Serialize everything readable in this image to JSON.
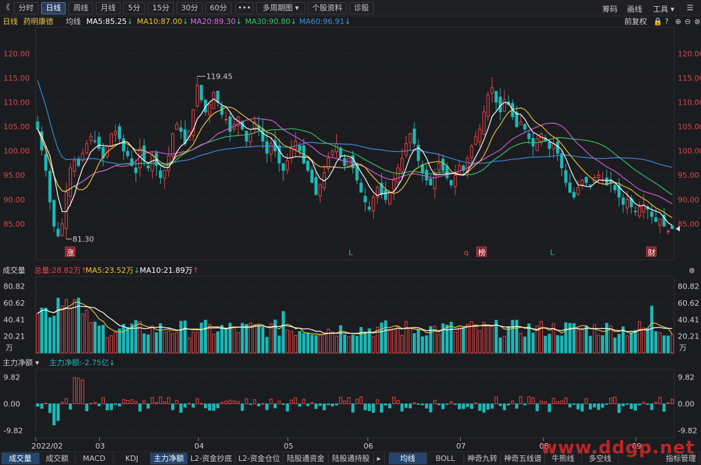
{
  "toolbar": {
    "collapse": "《",
    "periods": [
      "分时",
      "日线",
      "周线",
      "月线",
      "5分",
      "15分",
      "30分",
      "60分"
    ],
    "active_period": "日线",
    "more": "•••",
    "multi_period": "多周期图",
    "stock_info": "个股资料",
    "diagnose": "诊股",
    "chips": "筹码",
    "draw": "画线",
    "tools": "工具"
  },
  "info": {
    "period": "日线",
    "name": "药明康德",
    "ma_label": "均线",
    "ma5": "MA5:85.25",
    "ma10": "MA10:87.00",
    "ma20": "MA20:89.30",
    "ma30": "MA30:90.80",
    "ma60": "MA60:96.91",
    "adjust": "前复权"
  },
  "volume_panel": {
    "title": "成交量",
    "total": "总量:28.82万",
    "ma5": "MA5:23.52万",
    "ma10": "MA10:21.89万",
    "unit": "万"
  },
  "flow_panel": {
    "title": "主力净额",
    "value": "主力净额:-2.75亿"
  },
  "bottom_tabs": [
    "成交量",
    "成交额",
    "MACD",
    "KDJ",
    "主力净额",
    "L2-资金抄底",
    "L2-资金仓位",
    "陆股通资金",
    "陆股通持股"
  ],
  "bottom_tabs_right": [
    "均线",
    "BOLL",
    "神奇九转",
    "神奇五线谱",
    "牛熊线",
    "多空线",
    "指标管理"
  ],
  "watermark": "www.ddgp.net",
  "colors": {
    "up": "#e64545",
    "down": "#1fb7b7",
    "ma5": "#ffffff",
    "ma10": "#e8c53a",
    "ma20": "#d65ad6",
    "ma30": "#35c46a",
    "ma60": "#3a8fe0",
    "bg": "#1b1c20"
  },
  "chart_data": [
    {
      "type": "candlestick",
      "y_ticks": [
        85.0,
        90.0,
        95.0,
        100.0,
        105.0,
        110.0,
        115.0,
        120.0
      ],
      "ylim": [
        79.0,
        124.0
      ],
      "x_labels": [
        "2022/02",
        "03",
        "04",
        "05",
        "06",
        "07",
        "08",
        "09"
      ],
      "high_label": "119.45",
      "low_label": "81.30",
      "markers": [
        {
          "text": "涨",
          "style": "box"
        },
        {
          "text": "L",
          "style": "plain"
        },
        {
          "text": "q",
          "style": "plain"
        },
        {
          "text": "榜",
          "style": "box"
        },
        {
          "text": "L",
          "style": "plain"
        },
        {
          "text": "财",
          "style": "box"
        }
      ],
      "closes": [
        104.5,
        100.2,
        96.0,
        89.5,
        84.5,
        82.5,
        85.0,
        91.5,
        96.5,
        98.0,
        97.0,
        99.5,
        101.5,
        103.0,
        102.0,
        100.5,
        98.5,
        101.0,
        103.5,
        104.0,
        102.5,
        100.0,
        99.0,
        97.0,
        95.5,
        100.5,
        98.0,
        96.5,
        99.0,
        97.0,
        94.5,
        96.0,
        99.0,
        103.5,
        105.5,
        104.0,
        101.5,
        104.0,
        108.5,
        113.5,
        110.5,
        108.0,
        109.5,
        112.0,
        110.0,
        107.5,
        106.5,
        104.0,
        105.5,
        107.0,
        104.5,
        102.0,
        103.5,
        106.0,
        104.5,
        102.0,
        99.5,
        101.5,
        100.0,
        97.5,
        96.0,
        98.0,
        100.5,
        102.0,
        100.0,
        97.5,
        96.0,
        93.5,
        91.0,
        93.0,
        95.5,
        98.5,
        100.0,
        101.5,
        99.0,
        97.0,
        98.5,
        96.5,
        94.0,
        91.5,
        89.5,
        88.0,
        90.5,
        92.5,
        91.0,
        90.0,
        91.5,
        94.0,
        96.5,
        98.5,
        101.5,
        103.5,
        101.5,
        98.0,
        95.5,
        94.0,
        93.0,
        95.5,
        97.5,
        96.0,
        94.5,
        93.0,
        95.0,
        97.0,
        96.0,
        98.5,
        101.0,
        103.0,
        104.5,
        108.0,
        111.5,
        113.0,
        110.0,
        108.0,
        110.5,
        109.5,
        107.0,
        105.0,
        106.0,
        104.5,
        102.5,
        101.0,
        102.5,
        103.5,
        102.0,
        100.5,
        101.5,
        99.5,
        96.5,
        93.5,
        91.5,
        90.5,
        92.5,
        94.0,
        93.5,
        93.0,
        94.5,
        95.0,
        94.0,
        93.0,
        93.5,
        92.0,
        90.5,
        89.0,
        90.0,
        88.5,
        87.5,
        88.5,
        89.0,
        88.0,
        86.5,
        85.5,
        86.0,
        84.5,
        83.5,
        84.0
      ],
      "ma5": [
        104.5,
        103.0,
        101.0,
        99.0,
        95.0,
        90.5,
        87.5,
        87.5,
        89.0,
        91.0,
        94.0,
        96.5,
        98.0,
        99.8,
        100.6,
        101.2,
        101.1,
        101.0,
        101.0,
        101.3,
        101.5,
        101.9,
        101.8,
        100.8,
        99.6,
        98.8,
        98.0,
        97.5,
        97.9,
        98.2,
        97.0,
        96.6,
        96.6,
        97.9,
        99.8,
        101.0,
        101.6,
        102.9,
        104.3,
        106.6,
        107.6,
        109.1,
        110.0,
        110.7,
        110.1,
        109.4,
        109.1,
        108.0,
        106.7,
        106.1,
        105.5,
        104.7,
        104.4,
        104.6,
        104.5,
        103.6,
        103.1,
        102.7,
        101.5,
        100.1,
        98.9,
        98.5,
        98.6,
        98.8,
        98.8,
        98.7,
        98.7,
        97.9,
        95.8,
        94.3,
        93.8,
        94.5,
        95.9,
        97.7,
        98.9,
        99.0,
        98.9,
        98.5,
        97.0,
        95.6,
        94.3,
        92.7,
        91.5,
        90.8,
        91.2,
        91.3,
        91.4,
        91.6,
        92.8,
        94.2,
        96.5,
        98.9,
        100.3,
        100.6,
        100.0,
        98.5,
        96.4,
        95.1,
        95.1,
        95.2,
        95.3,
        95.3,
        95.5,
        95.1,
        95.0,
        95.8,
        97.2,
        98.8,
        100.4,
        102.3,
        104.5,
        107.1,
        108.1,
        109.3,
        110.0,
        109.8,
        108.5,
        107.6,
        107.5,
        106.5,
        105.0,
        103.8,
        103.4,
        102.8,
        102.6,
        102.0,
        101.5,
        101.0,
        100.2,
        98.5,
        96.4,
        94.5,
        93.0,
        92.9,
        92.7,
        92.6,
        93.3,
        94.0,
        94.0,
        93.9,
        94.0,
        93.5,
        92.6,
        91.7,
        91.0,
        90.1,
        89.1,
        88.7,
        88.8,
        88.4,
        87.9,
        87.6,
        87.3,
        86.3,
        85.2,
        84.7
      ]
    },
    {
      "type": "bar",
      "y_ticks": [
        20.21,
        40.41,
        60.62,
        80.82
      ],
      "ylim": [
        0,
        88
      ],
      "values_unit": "万"
    },
    {
      "type": "bar",
      "y_ticks": [
        -9.82,
        0.0,
        9.82
      ],
      "ylim": [
        -11.5,
        11.5
      ]
    }
  ]
}
